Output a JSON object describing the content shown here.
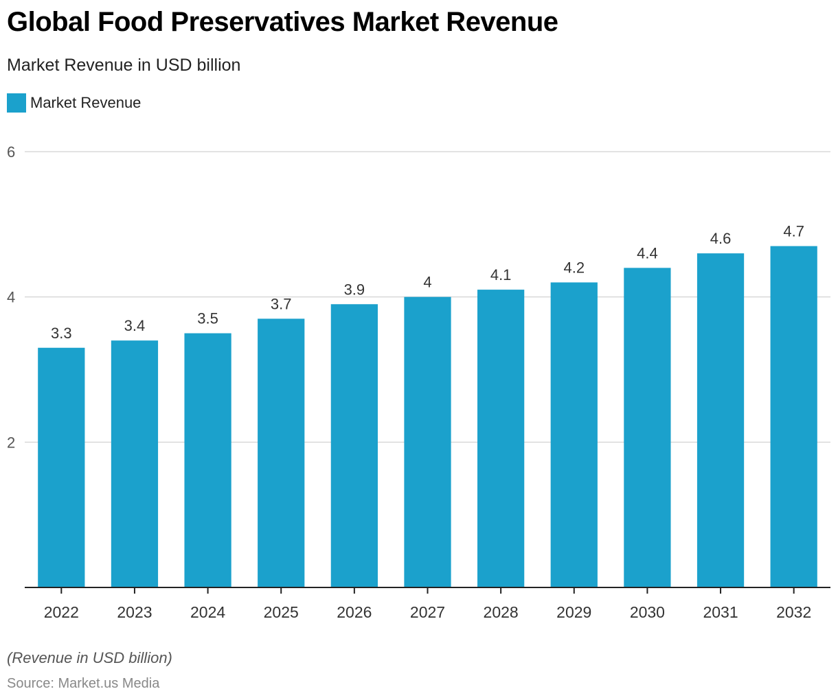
{
  "header": {
    "title": "Global Food Preservatives Market Revenue",
    "subtitle": "Market Revenue in USD billion"
  },
  "footer": {
    "note": "(Revenue in USD billion)",
    "source": "Source: Market.us Media"
  },
  "colors": {
    "bar": "#1ba1cc",
    "grid": "#d9d9d9",
    "axis": "#222222"
  },
  "chart_data": {
    "type": "bar",
    "title": "Global Food Preservatives Market Revenue",
    "subtitle": "Market Revenue in USD billion",
    "xlabel": "",
    "ylabel": "",
    "categories": [
      "2022",
      "2023",
      "2024",
      "2025",
      "2026",
      "2027",
      "2028",
      "2029",
      "2030",
      "2031",
      "2032"
    ],
    "series": [
      {
        "name": "Market Revenue",
        "values": [
          3.3,
          3.4,
          3.5,
          3.7,
          3.9,
          4,
          4.1,
          4.2,
          4.4,
          4.6,
          4.7
        ]
      }
    ],
    "data_labels": [
      "3.3",
      "3.4",
      "3.5",
      "3.7",
      "3.9",
      "4",
      "4.1",
      "4.2",
      "4.4",
      "4.6",
      "4.7"
    ],
    "ylim": [
      0,
      6
    ],
    "yticks": [
      2,
      4,
      6
    ],
    "ytick_labels": [
      "2",
      "4",
      "6"
    ],
    "grid": true,
    "legend": {
      "position": "top-left",
      "entries": [
        "Market Revenue"
      ]
    }
  }
}
